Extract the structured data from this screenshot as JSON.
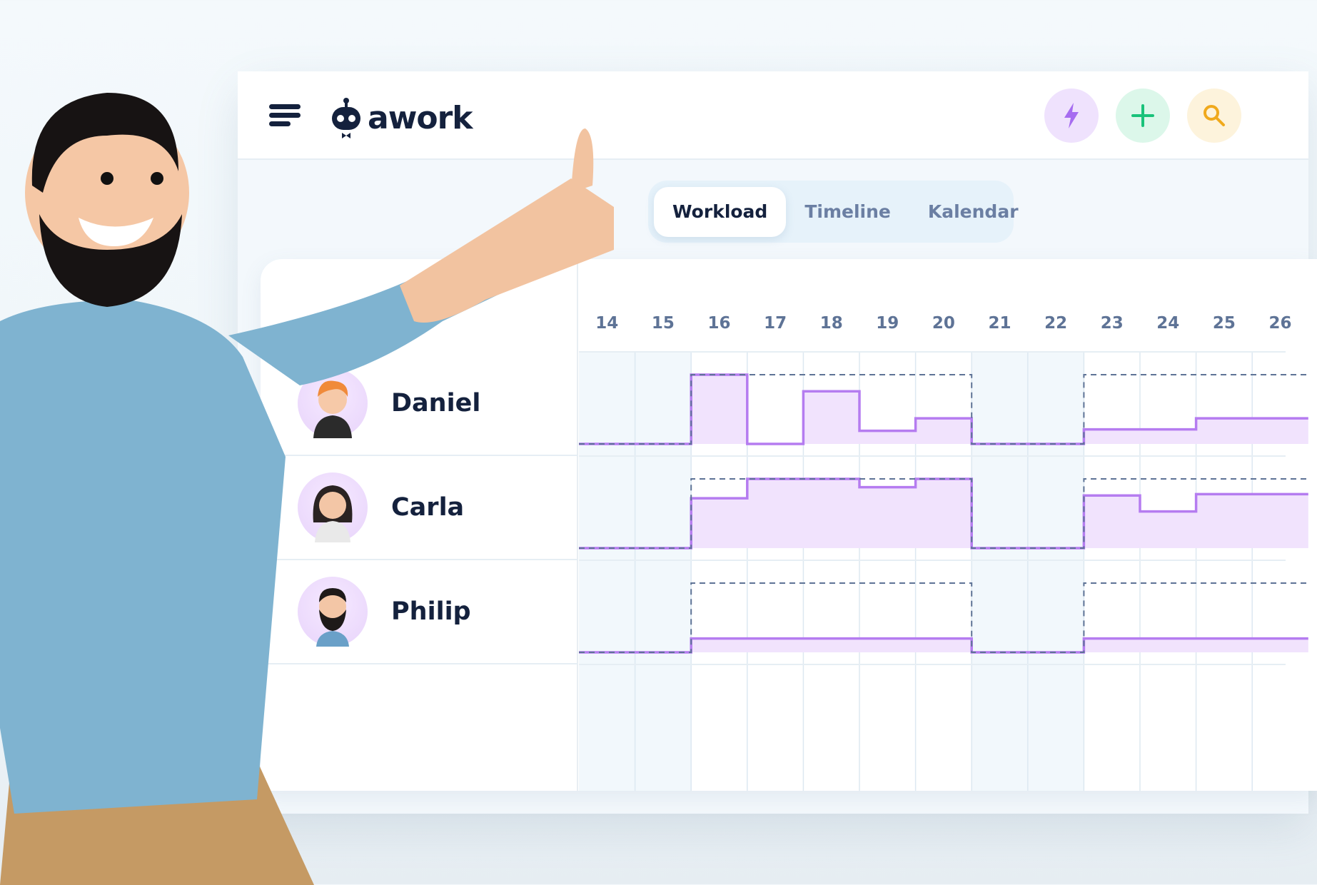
{
  "header": {
    "logo_text": "awork",
    "menu_icon": "hamburger-icon",
    "buttons": [
      {
        "name": "quick-action",
        "icon": "lightning-icon",
        "bg": "#efe2fd",
        "color": "#a66cf0"
      },
      {
        "name": "create",
        "icon": "plus-icon",
        "bg": "#dcf7ea",
        "color": "#19c27a"
      },
      {
        "name": "search",
        "icon": "search-icon",
        "bg": "#fdf3dc",
        "color": "#f0a91c"
      }
    ]
  },
  "tabs": [
    {
      "label": "Workload",
      "active": true
    },
    {
      "label": "Timeline",
      "active": false
    },
    {
      "label": "Kalendar",
      "active": false
    }
  ],
  "people": [
    {
      "name": "Daniel"
    },
    {
      "name": "Carla"
    },
    {
      "name": "Philip"
    }
  ],
  "colors": {
    "workload_line": "#b57cf0",
    "workload_fill": "#f1e3fd",
    "capacity_dash": "#5e7396",
    "weekend_bg": "#f2f8fc"
  },
  "chart_data": {
    "type": "step-area",
    "days": [
      "14",
      "15",
      "16",
      "17",
      "18",
      "19",
      "20",
      "21",
      "22",
      "23",
      "24",
      "25",
      "26"
    ],
    "weekend_days": [
      "14",
      "15",
      "21",
      "22"
    ],
    "unit": "percent of capacity",
    "series": [
      {
        "person": "Daniel",
        "workload": [
          0,
          0,
          100,
          0,
          76,
          19,
          37,
          0,
          0,
          21,
          21,
          37,
          37
        ],
        "capacity": [
          0,
          0,
          100,
          100,
          100,
          100,
          100,
          0,
          0,
          100,
          100,
          100,
          100
        ]
      },
      {
        "person": "Carla",
        "workload": [
          0,
          0,
          72,
          100,
          100,
          88,
          100,
          0,
          0,
          76,
          53,
          78,
          78
        ],
        "capacity": [
          0,
          0,
          100,
          100,
          100,
          100,
          100,
          0,
          0,
          100,
          100,
          100,
          100
        ]
      },
      {
        "person": "Philip",
        "workload": [
          0,
          0,
          20,
          20,
          20,
          20,
          20,
          0,
          0,
          20,
          20,
          20,
          20
        ],
        "capacity": [
          0,
          0,
          100,
          100,
          100,
          100,
          100,
          0,
          0,
          100,
          100,
          100,
          100
        ]
      }
    ]
  }
}
